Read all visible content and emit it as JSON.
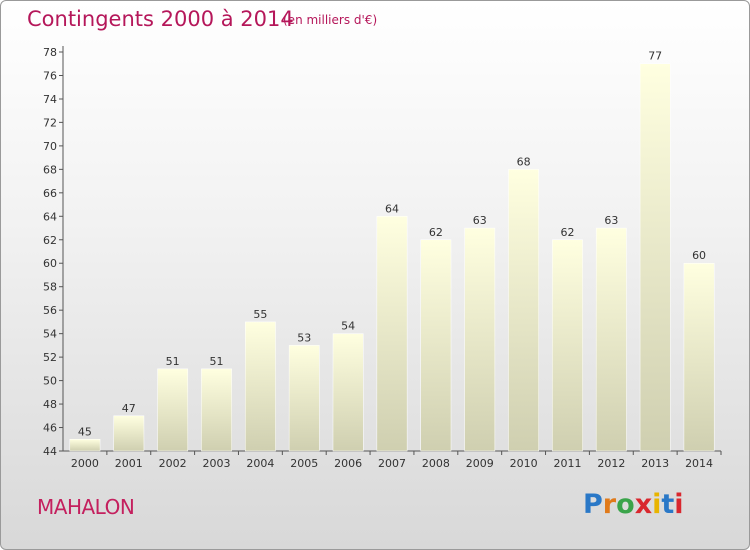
{
  "header": {
    "title": "Contingents 2000 à 2014",
    "subtitle": "(en milliers d'€)"
  },
  "footer": {
    "commune": "MAHALON",
    "logo_text": "Proxiti"
  },
  "colors": {
    "title": "#b5175a",
    "bar_top": "#ffffe0",
    "bar_bottom": "#cfcfb0",
    "logo_letters": [
      "#2a78c7",
      "#e07a1a",
      "#3aa44a",
      "#d9272e",
      "#e8b400",
      "#2a78c7",
      "#d9272e"
    ]
  },
  "chart_data": {
    "type": "bar",
    "title": "Contingents 2000 à 2014",
    "subtitle": "(en milliers d'€)",
    "categories": [
      "2000",
      "2001",
      "2002",
      "2003",
      "2004",
      "2005",
      "2006",
      "2007",
      "2008",
      "2009",
      "2010",
      "2011",
      "2012",
      "2013",
      "2014"
    ],
    "values": [
      45,
      47,
      51,
      51,
      55,
      53,
      54,
      64,
      62,
      63,
      68,
      62,
      63,
      77,
      60
    ],
    "ylim": [
      44,
      78
    ],
    "ytick_step": 2,
    "grid": false,
    "xlabel": "",
    "ylabel": ""
  }
}
